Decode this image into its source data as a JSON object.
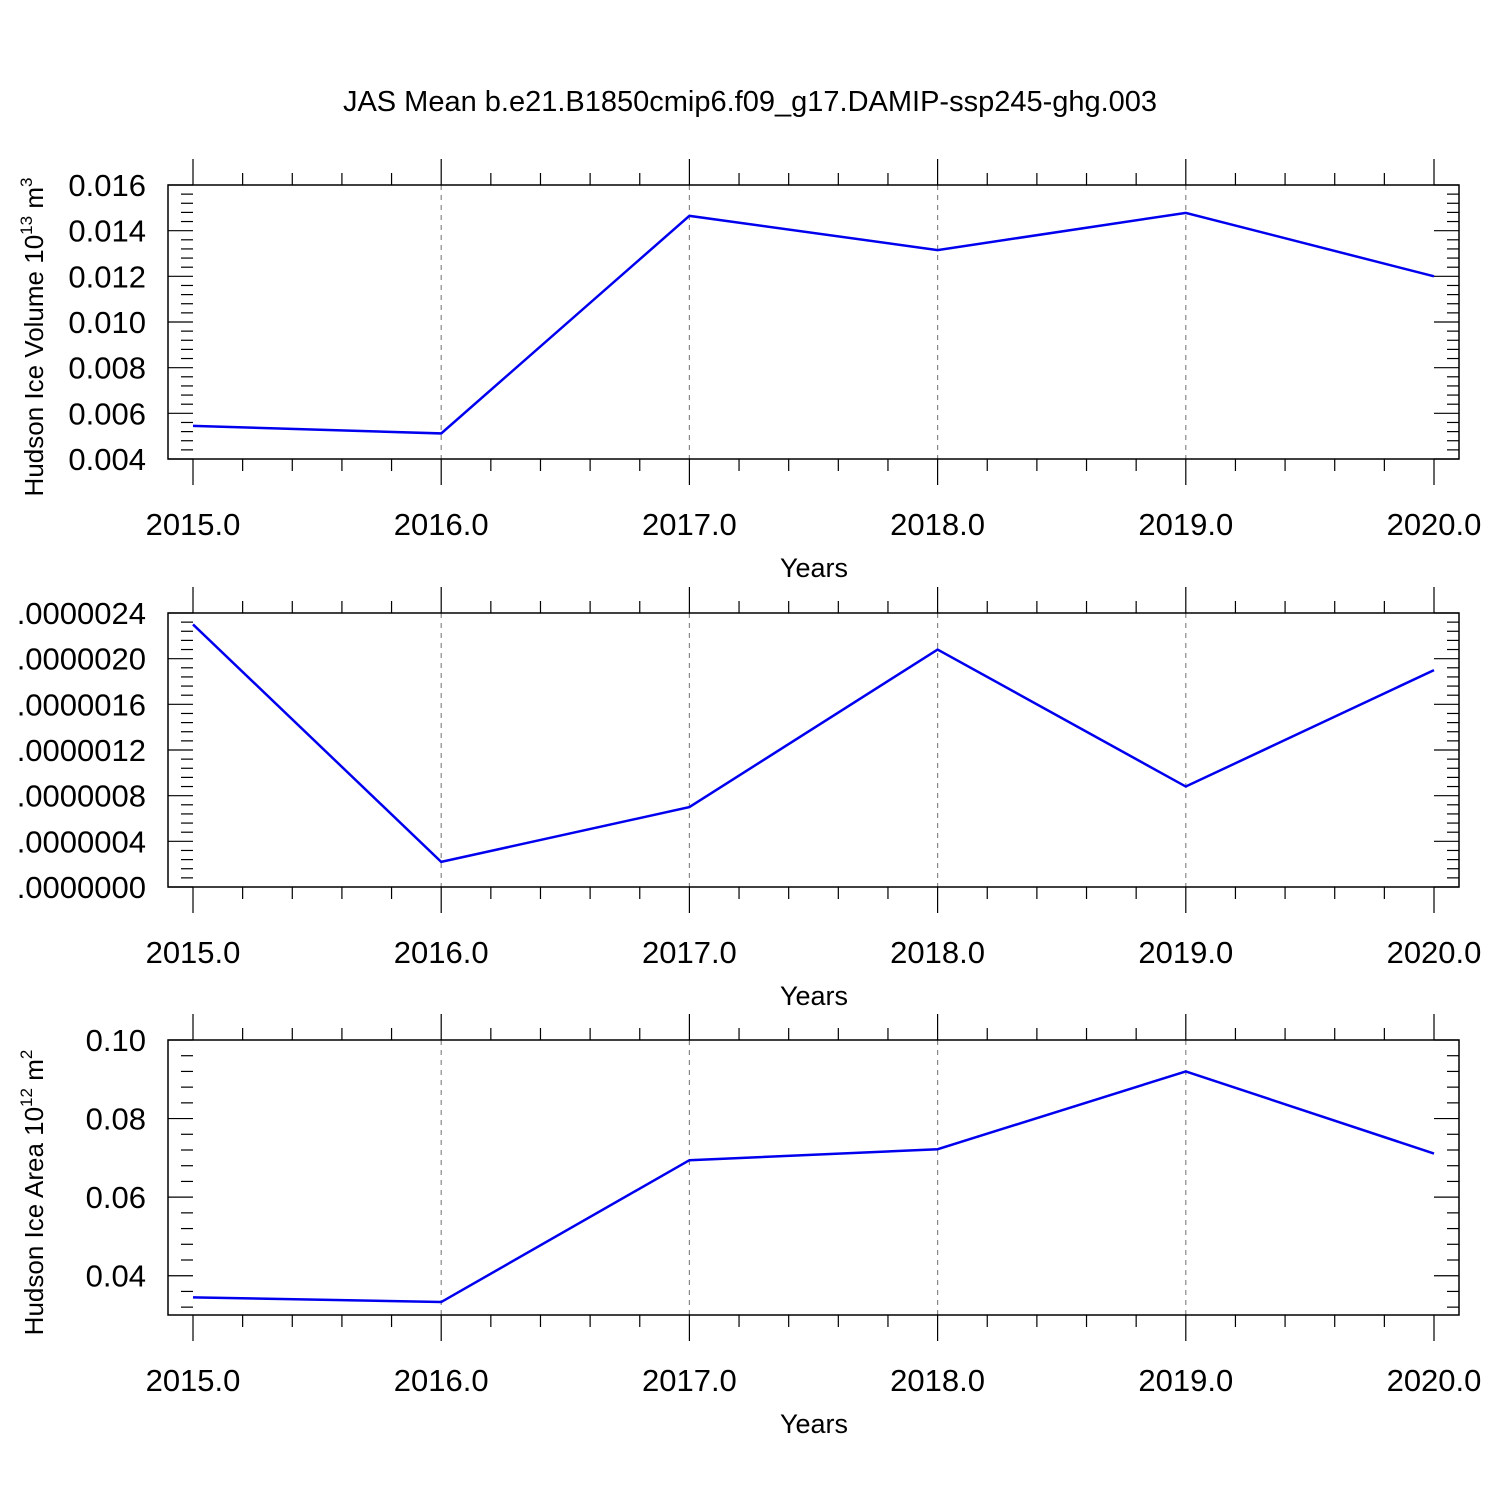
{
  "figure": {
    "title": "JAS Mean b.e21.B1850cmip6.f09_g17.DAMIP-ssp245-ghg.003",
    "line_color": "#0000ee"
  },
  "chart_data": [
    {
      "type": "line",
      "x": [
        2015,
        2016,
        2017,
        2018,
        2019,
        2020
      ],
      "values": [
        0.00545,
        0.00512,
        0.01465,
        0.01315,
        0.01478,
        0.012
      ],
      "xlabel": "Years",
      "ylabel_main": "Hudson Ice Volume 10",
      "ylabel_sup": "13",
      "ylabel_unit": " m",
      "ylabel_unit_sup": "3",
      "xlim": [
        2015,
        2020
      ],
      "ylim": [
        0.004,
        0.016
      ],
      "xticks": [
        2015,
        2016,
        2017,
        2018,
        2019,
        2020
      ],
      "xtick_labels": [
        "2015.0",
        "2016.0",
        "2017.0",
        "2018.0",
        "2019.0",
        "2020.0"
      ],
      "yticks": [
        0.004,
        0.006,
        0.008,
        0.01,
        0.012,
        0.014,
        0.016
      ],
      "ytick_labels": [
        "0.004",
        "0.006",
        "0.008",
        "0.010",
        "0.012",
        "0.014",
        "0.016"
      ],
      "grid": "vertical dashed at major x ticks"
    },
    {
      "type": "line",
      "x": [
        2015,
        2016,
        2017,
        2018,
        2019,
        2020
      ],
      "values": [
        2.3e-06,
        2.2e-07,
        7e-07,
        2.08e-06,
        8.8e-07,
        1.9e-06
      ],
      "xlabel": "Years",
      "ylabel_main": "",
      "ylabel_sup": "",
      "ylabel_unit": "",
      "ylabel_unit_sup": "",
      "xlim": [
        2015,
        2020
      ],
      "ylim": [
        0,
        2.4e-06
      ],
      "xticks": [
        2015,
        2016,
        2017,
        2018,
        2019,
        2020
      ],
      "xtick_labels": [
        "2015.0",
        "2016.0",
        "2017.0",
        "2018.0",
        "2019.0",
        "2020.0"
      ],
      "yticks": [
        0,
        4e-07,
        8e-07,
        1.2e-06,
        1.6e-06,
        2e-06,
        2.4e-06
      ],
      "ytick_labels": [
        ".0000000",
        ".0000004",
        ".0000008",
        ".0000012",
        ".0000016",
        ".0000020",
        ".0000024"
      ],
      "grid": "vertical dashed at major x ticks"
    },
    {
      "type": "line",
      "x": [
        2015,
        2016,
        2017,
        2018,
        2019,
        2020
      ],
      "values": [
        0.0345,
        0.0333,
        0.0694,
        0.0722,
        0.092,
        0.0711
      ],
      "xlabel": "Years",
      "ylabel_main": "Hudson Ice Area 10",
      "ylabel_sup": "12",
      "ylabel_unit": " m",
      "ylabel_unit_sup": "2",
      "xlim": [
        2015,
        2020
      ],
      "ylim": [
        0.03,
        0.1
      ],
      "xticks": [
        2015,
        2016,
        2017,
        2018,
        2019,
        2020
      ],
      "xtick_labels": [
        "2015.0",
        "2016.0",
        "2017.0",
        "2018.0",
        "2019.0",
        "2020.0"
      ],
      "yticks": [
        0.04,
        0.06,
        0.08,
        0.1
      ],
      "ytick_labels": [
        "0.04",
        "0.06",
        "0.08",
        "0.10"
      ],
      "grid": "vertical dashed at major x ticks"
    }
  ]
}
